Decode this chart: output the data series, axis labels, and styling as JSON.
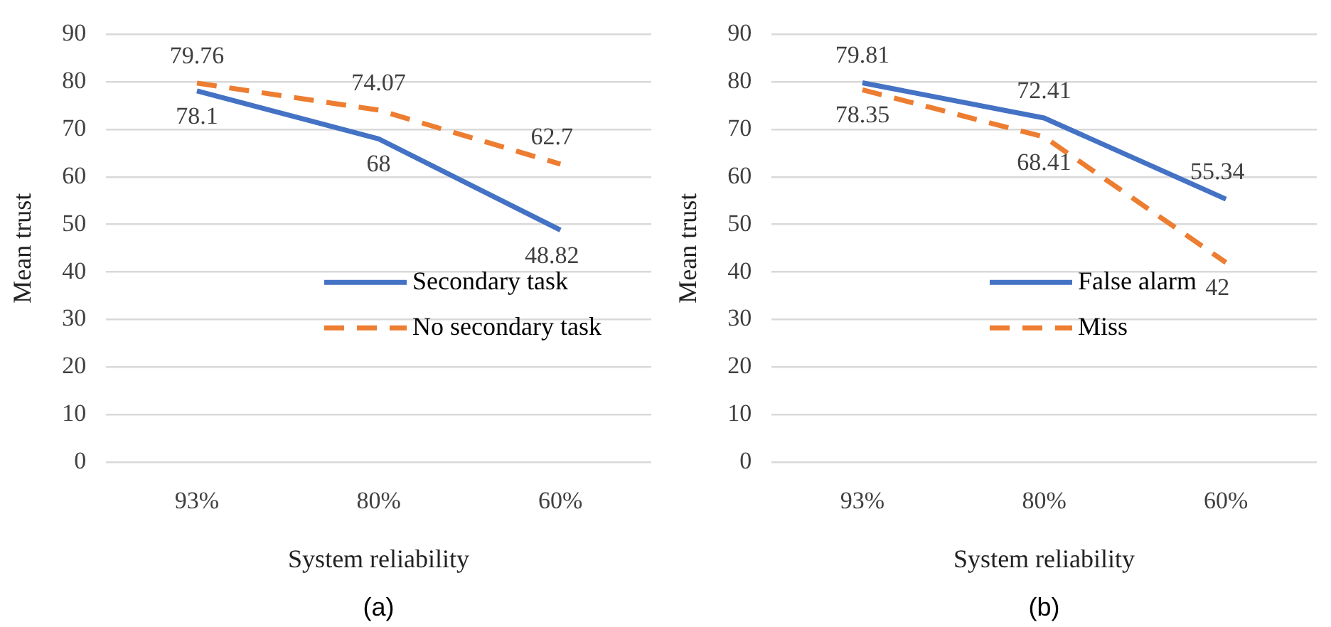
{
  "chart_data": [
    {
      "type": "line",
      "xlabel": "System reliability",
      "ylabel": "Mean trust",
      "categories": [
        "93%",
        "80%",
        "60%"
      ],
      "series": [
        {
          "name": "Secondary task",
          "color": "#4472c4",
          "line_style": "solid",
          "values": [
            78.1,
            68,
            48.82
          ]
        },
        {
          "name": "No secondary task",
          "color": "#ed7d31",
          "line_style": "dashed",
          "values": [
            79.76,
            74.07,
            62.7
          ]
        }
      ],
      "ylim": [
        0,
        90
      ],
      "yticks": [
        0,
        10,
        20,
        30,
        40,
        50,
        60,
        70,
        80,
        90
      ],
      "grid": "y",
      "legend": "right",
      "marker": "none",
      "data_labels": true,
      "annotations": [
        "(a)"
      ]
    },
    {
      "type": "line",
      "xlabel": "System reliability",
      "ylabel": "Mean trust",
      "categories": [
        "93%",
        "80%",
        "60%"
      ],
      "series": [
        {
          "name": "False alarm",
          "color": "#4472c4",
          "line_style": "solid",
          "values": [
            79.81,
            72.41,
            55.34
          ]
        },
        {
          "name": "Miss",
          "color": "#ed7d31",
          "line_style": "dashed",
          "values": [
            78.35,
            68.41,
            42
          ]
        }
      ],
      "ylim": [
        0,
        90
      ],
      "yticks": [
        0,
        10,
        20,
        30,
        40,
        50,
        60,
        70,
        80,
        90
      ],
      "grid": "y",
      "legend": "right",
      "marker": "none",
      "data_labels": true,
      "annotations": [
        "(b)"
      ]
    }
  ]
}
